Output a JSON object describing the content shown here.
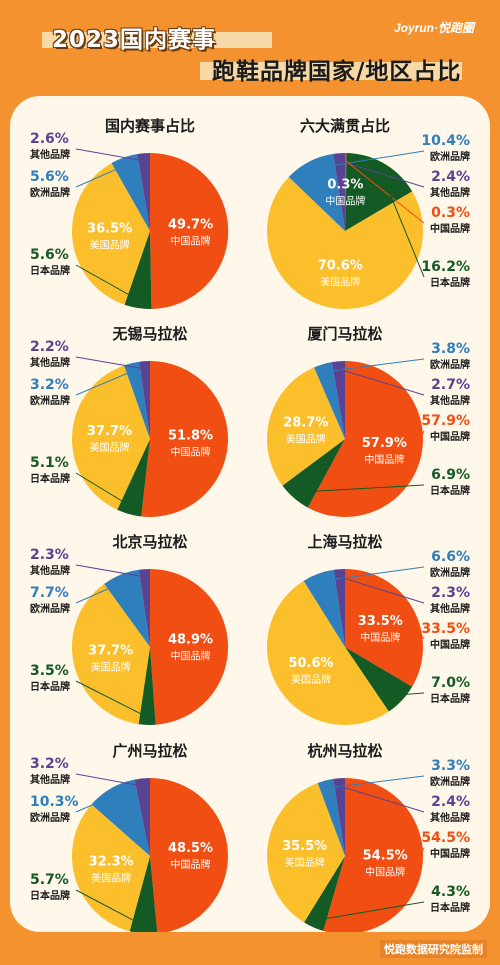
{
  "header": {
    "title_line1": "2023国内赛事",
    "title_line2": "跑鞋品牌国家/地区占比",
    "brand": "Joyrun·悦跑圈",
    "footer": "悦跑数据研究院监制"
  },
  "colors": {
    "中国品牌": "#f04e12",
    "美国品牌": "#fbbf2c",
    "日本品牌": "#135a24",
    "欧洲品牌": "#2f7fbd",
    "其他品牌": "#5a4393"
  },
  "chart_data": [
    {
      "type": "pie",
      "title": "国内赛事占比",
      "slices": [
        {
          "label": "中国品牌",
          "value": 49.7,
          "text": "49.7%"
        },
        {
          "label": "日本品牌",
          "value": 5.6,
          "text": "5.6%"
        },
        {
          "label": "美国品牌",
          "value": 36.5,
          "text": "36.5%"
        },
        {
          "label": "欧洲品牌",
          "value": 5.6,
          "text": "5.6%"
        },
        {
          "label": "其他品牌",
          "value": 2.6,
          "text": "2.6%"
        }
      ]
    },
    {
      "type": "pie",
      "title": "六大满贯占比",
      "slices": [
        {
          "label": "中国品牌",
          "value": 0.3,
          "text": "0.3%"
        },
        {
          "label": "日本品牌",
          "value": 16.2,
          "text": "16.2%"
        },
        {
          "label": "美国品牌",
          "value": 70.6,
          "text": "70.6%"
        },
        {
          "label": "欧洲品牌",
          "value": 10.4,
          "text": "10.4%"
        },
        {
          "label": "其他品牌",
          "value": 2.4,
          "text": "2.4%"
        }
      ]
    },
    {
      "type": "pie",
      "title": "无锡马拉松",
      "slices": [
        {
          "label": "中国品牌",
          "value": 51.8,
          "text": "51.8%"
        },
        {
          "label": "日本品牌",
          "value": 5.1,
          "text": "5.1%"
        },
        {
          "label": "美国品牌",
          "value": 37.7,
          "text": "37.7%"
        },
        {
          "label": "欧洲品牌",
          "value": 3.2,
          "text": "3.2%"
        },
        {
          "label": "其他品牌",
          "value": 2.2,
          "text": "2.2%"
        }
      ]
    },
    {
      "type": "pie",
      "title": "厦门马拉松",
      "slices": [
        {
          "label": "中国品牌",
          "value": 57.9,
          "text": "57.9%"
        },
        {
          "label": "日本品牌",
          "value": 6.9,
          "text": "6.9%"
        },
        {
          "label": "美国品牌",
          "value": 28.7,
          "text": "28.7%"
        },
        {
          "label": "欧洲品牌",
          "value": 3.8,
          "text": "3.8%"
        },
        {
          "label": "其他品牌",
          "value": 2.7,
          "text": "2.7%"
        }
      ]
    },
    {
      "type": "pie",
      "title": "北京马拉松",
      "slices": [
        {
          "label": "中国品牌",
          "value": 48.9,
          "text": "48.9%"
        },
        {
          "label": "日本品牌",
          "value": 3.5,
          "text": "3.5%"
        },
        {
          "label": "美国品牌",
          "value": 37.7,
          "text": "37.7%"
        },
        {
          "label": "欧洲品牌",
          "value": 7.7,
          "text": "7.7%"
        },
        {
          "label": "其他品牌",
          "value": 2.3,
          "text": "2.3%"
        }
      ]
    },
    {
      "type": "pie",
      "title": "上海马拉松",
      "slices": [
        {
          "label": "中国品牌",
          "value": 33.5,
          "text": "33.5%"
        },
        {
          "label": "日本品牌",
          "value": 7.0,
          "text": "7.0%"
        },
        {
          "label": "美国品牌",
          "value": 50.6,
          "text": "50.6%"
        },
        {
          "label": "欧洲品牌",
          "value": 6.6,
          "text": "6.6%"
        },
        {
          "label": "其他品牌",
          "value": 2.3,
          "text": "2.3%"
        }
      ]
    },
    {
      "type": "pie",
      "title": "广州马拉松",
      "slices": [
        {
          "label": "中国品牌",
          "value": 48.5,
          "text": "48.5%"
        },
        {
          "label": "日本品牌",
          "value": 5.7,
          "text": "5.7%"
        },
        {
          "label": "美国品牌",
          "value": 32.3,
          "text": "32.3%"
        },
        {
          "label": "欧洲品牌",
          "value": 10.3,
          "text": "10.3%"
        },
        {
          "label": "其他品牌",
          "value": 3.2,
          "text": "3.2%"
        }
      ]
    },
    {
      "type": "pie",
      "title": "杭州马拉松",
      "slices": [
        {
          "label": "中国品牌",
          "value": 54.5,
          "text": "54.5%"
        },
        {
          "label": "日本品牌",
          "value": 4.3,
          "text": "4.3%"
        },
        {
          "label": "美国品牌",
          "value": 35.5,
          "text": "35.5%"
        },
        {
          "label": "欧洲品牌",
          "value": 3.3,
          "text": "3.3%"
        },
        {
          "label": "其他品牌",
          "value": 2.4,
          "text": "2.4%"
        }
      ]
    }
  ]
}
